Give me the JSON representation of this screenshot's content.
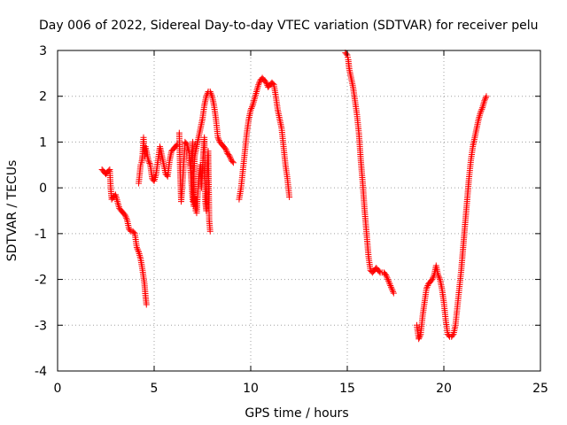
{
  "chart_data": {
    "type": "scatter",
    "title": "Day 006 of 2022, Sidereal Day-to-day VTEC variation (SDTVAR) for receiver pelu",
    "xlabel": "GPS time / hours",
    "ylabel": "SDTVAR / TECUs",
    "xlim": [
      0,
      25
    ],
    "ylim": [
      -4,
      3
    ],
    "xticks": [
      0,
      5,
      10,
      15,
      20,
      25
    ],
    "yticks": [
      -4,
      -3,
      -2,
      -1,
      0,
      1,
      2,
      3
    ],
    "xtick_labels": [
      "0",
      "5",
      "10",
      "15",
      "20",
      "25"
    ],
    "ytick_labels": [
      "-4",
      "-3",
      "-2",
      "-1",
      "0",
      "1",
      "2",
      "3"
    ],
    "grid": true,
    "marker": "+",
    "series": [
      {
        "name": "SDTVAR",
        "color": "#ff0000",
        "segments": [
          {
            "x": [
              2.3,
              2.4,
              2.5,
              2.6,
              2.7,
              2.75,
              2.8,
              2.9,
              3.0,
              3.1,
              3.2,
              3.3,
              3.4,
              3.5,
              3.6,
              3.7,
              3.8,
              3.9,
              4.0,
              4.1,
              4.2,
              4.3,
              4.4,
              4.5,
              4.55,
              4.6
            ],
            "y": [
              0.4,
              0.35,
              0.3,
              0.35,
              0.4,
              0.0,
              -0.25,
              -0.2,
              -0.15,
              -0.3,
              -0.45,
              -0.5,
              -0.55,
              -0.6,
              -0.7,
              -0.9,
              -0.95,
              -0.95,
              -1.0,
              -1.3,
              -1.4,
              -1.55,
              -1.8,
              -2.1,
              -2.35,
              -2.55
            ]
          },
          {
            "x": [
              4.2,
              4.3,
              4.35,
              4.4,
              4.45,
              4.5,
              4.55,
              4.6,
              4.7,
              4.8,
              4.9,
              5.0,
              5.1,
              5.2,
              5.3,
              5.4,
              5.5,
              5.6,
              5.7,
              5.8,
              5.9,
              6.0,
              6.1,
              6.2
            ],
            "y": [
              0.1,
              0.5,
              0.55,
              0.7,
              1.1,
              0.7,
              0.9,
              0.8,
              0.6,
              0.5,
              0.2,
              0.15,
              0.3,
              0.6,
              0.9,
              0.7,
              0.5,
              0.3,
              0.25,
              0.6,
              0.8,
              0.85,
              0.9,
              0.95
            ]
          },
          {
            "x": [
              6.3,
              6.35,
              6.4,
              6.5,
              6.6,
              6.7,
              6.8,
              6.9,
              7.0,
              7.1,
              7.2,
              7.3,
              7.4,
              7.5,
              7.6,
              7.7,
              7.8,
              7.9,
              8.0,
              8.1,
              8.2,
              8.3,
              8.4,
              8.5,
              8.6,
              8.7,
              8.8,
              8.9,
              9.0,
              9.1
            ],
            "y": [
              1.2,
              0.3,
              -0.3,
              0.3,
              1.0,
              0.95,
              0.8,
              0.3,
              -0.3,
              0.7,
              0.9,
              1.1,
              1.3,
              1.5,
              1.8,
              2.0,
              2.1,
              2.1,
              2.0,
              1.8,
              1.5,
              1.1,
              1.0,
              0.95,
              0.9,
              0.85,
              0.75,
              0.7,
              0.6,
              0.55
            ]
          },
          {
            "x": [
              6.9,
              7.0,
              7.05,
              7.1,
              7.15,
              7.2,
              7.3,
              7.4,
              7.45,
              7.5,
              7.55,
              7.6,
              7.65,
              7.7,
              7.75,
              7.8,
              7.85,
              7.9
            ],
            "y": [
              0.5,
              1.0,
              -0.4,
              -0.2,
              -0.5,
              -0.55,
              0.2,
              0.5,
              0.0,
              0.35,
              0.8,
              1.1,
              -0.3,
              -0.5,
              0.5,
              0.8,
              -0.7,
              -0.95
            ]
          },
          {
            "x": [
              9.4,
              9.5,
              9.6,
              9.7,
              9.8,
              9.9,
              10.0,
              10.1,
              10.2,
              10.3,
              10.4,
              10.5,
              10.6,
              10.7,
              10.8,
              10.9,
              11.0,
              11.1,
              11.2,
              11.3,
              11.4,
              11.5,
              11.6,
              11.7,
              11.8,
              11.9,
              12.0
            ],
            "y": [
              -0.25,
              0.0,
              0.4,
              0.8,
              1.2,
              1.5,
              1.7,
              1.8,
              1.95,
              2.1,
              2.25,
              2.35,
              2.4,
              2.35,
              2.3,
              2.2,
              2.25,
              2.3,
              2.25,
              2.0,
              1.7,
              1.5,
              1.3,
              0.9,
              0.5,
              0.2,
              -0.2
            ]
          },
          {
            "x": [
              14.9,
              15.0,
              15.05,
              15.1,
              15.2,
              15.3,
              15.4,
              15.5,
              15.6,
              15.7,
              15.8,
              15.9,
              16.0,
              16.1,
              16.2,
              16.3,
              16.4,
              16.5,
              16.6,
              16.7,
              16.8,
              16.9,
              17.0,
              17.1,
              17.2,
              17.3,
              17.4
            ],
            "y": [
              2.95,
              2.9,
              2.8,
              2.6,
              2.4,
              2.2,
              1.9,
              1.6,
              1.2,
              0.6,
              0.1,
              -0.5,
              -1.0,
              -1.5,
              -1.8,
              -1.85,
              -1.8,
              -1.75,
              -1.8,
              -1.85,
              -1.85,
              -1.85,
              -1.9,
              -2.0,
              -2.1,
              -2.2,
              -2.3
            ]
          },
          {
            "x": [
              18.6,
              18.7,
              18.8,
              18.9,
              19.0,
              19.1,
              19.2,
              19.3,
              19.4,
              19.5,
              19.6,
              19.7,
              19.8,
              19.9,
              20.0,
              20.1,
              20.2,
              20.3,
              20.4,
              20.5,
              20.6,
              20.7,
              20.8,
              20.9,
              21.0,
              21.1,
              21.2,
              21.3,
              21.4,
              21.5,
              21.6,
              21.7,
              21.8,
              21.9,
              22.0,
              22.1,
              22.2
            ],
            "y": [
              -3.0,
              -3.3,
              -3.2,
              -2.8,
              -2.5,
              -2.2,
              -2.1,
              -2.05,
              -2.0,
              -1.9,
              -1.7,
              -1.9,
              -2.0,
              -2.2,
              -2.5,
              -2.9,
              -3.2,
              -3.25,
              -3.25,
              -3.2,
              -3.0,
              -2.6,
              -2.2,
              -1.8,
              -1.3,
              -0.8,
              -0.3,
              0.2,
              0.6,
              0.9,
              1.1,
              1.3,
              1.5,
              1.65,
              1.75,
              1.9,
              2.0
            ]
          }
        ]
      }
    ]
  }
}
